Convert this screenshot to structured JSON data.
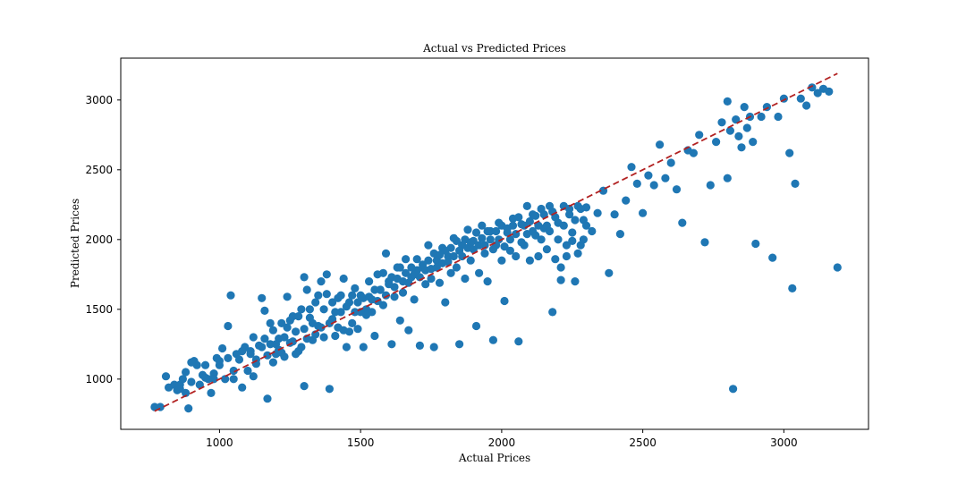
{
  "chart_data": {
    "type": "scatter",
    "title": "Actual vs Predicted Prices",
    "xlabel": "Actual Prices",
    "ylabel": "Predicted Prices",
    "xlim": [
      650,
      3300
    ],
    "ylim": [
      640,
      3300
    ],
    "x_ticks": [
      1000,
      1500,
      2000,
      2500,
      3000
    ],
    "y_ticks": [
      1000,
      1500,
      2000,
      2500,
      3000
    ],
    "grid": false,
    "point_color": "#1f77b4",
    "reference_line": {
      "style": "dashed",
      "color": "#b22222",
      "from": [
        770,
        770
      ],
      "to": [
        3190,
        3190
      ]
    },
    "points": [
      [
        770,
        800
      ],
      [
        790,
        800
      ],
      [
        810,
        1020
      ],
      [
        820,
        940
      ],
      [
        840,
        960
      ],
      [
        850,
        920
      ],
      [
        860,
        960
      ],
      [
        870,
        1000
      ],
      [
        880,
        1050
      ],
      [
        880,
        900
      ],
      [
        890,
        790
      ],
      [
        900,
        980
      ],
      [
        910,
        1130
      ],
      [
        920,
        1100
      ],
      [
        930,
        960
      ],
      [
        940,
        1030
      ],
      [
        950,
        1010
      ],
      [
        960,
        1000
      ],
      [
        970,
        900
      ],
      [
        980,
        1040
      ],
      [
        990,
        1150
      ],
      [
        1000,
        1100
      ],
      [
        1010,
        1220
      ],
      [
        1020,
        1000
      ],
      [
        1030,
        1150
      ],
      [
        1030,
        1380
      ],
      [
        1040,
        1600
      ],
      [
        1050,
        1060
      ],
      [
        1060,
        1180
      ],
      [
        1070,
        1140
      ],
      [
        1080,
        940
      ],
      [
        1090,
        1230
      ],
      [
        1100,
        1060
      ],
      [
        1110,
        1200
      ],
      [
        1120,
        1300
      ],
      [
        1130,
        1140
      ],
      [
        1140,
        1240
      ],
      [
        1150,
        1580
      ],
      [
        1160,
        1490
      ],
      [
        1170,
        860
      ],
      [
        1180,
        1250
      ],
      [
        1190,
        1350
      ],
      [
        1200,
        1180
      ],
      [
        1210,
        1290
      ],
      [
        1220,
        1400
      ],
      [
        1230,
        1300
      ],
      [
        1240,
        1590
      ],
      [
        1250,
        1260
      ],
      [
        1260,
        1450
      ],
      [
        1270,
        1340
      ],
      [
        1280,
        1200
      ],
      [
        1290,
        1500
      ],
      [
        1300,
        1730
      ],
      [
        1300,
        950
      ],
      [
        1310,
        1640
      ],
      [
        1320,
        1440
      ],
      [
        1330,
        1280
      ],
      [
        1340,
        1550
      ],
      [
        1350,
        1380
      ],
      [
        1360,
        1700
      ],
      [
        1370,
        1500
      ],
      [
        1380,
        1610
      ],
      [
        1390,
        930
      ],
      [
        1400,
        1430
      ],
      [
        1410,
        1310
      ],
      [
        1420,
        1580
      ],
      [
        1430,
        1480
      ],
      [
        1440,
        1720
      ],
      [
        1450,
        1230
      ],
      [
        1460,
        1550
      ],
      [
        1470,
        1400
      ],
      [
        1480,
        1650
      ],
      [
        1490,
        1360
      ],
      [
        1500,
        1600
      ],
      [
        1510,
        1230
      ],
      [
        1520,
        1500
      ],
      [
        1530,
        1700
      ],
      [
        1540,
        1570
      ],
      [
        1550,
        1310
      ],
      [
        1560,
        1750
      ],
      [
        1570,
        1640
      ],
      [
        1580,
        1530
      ],
      [
        1590,
        1900
      ],
      [
        1600,
        1700
      ],
      [
        1610,
        1250
      ],
      [
        1620,
        1660
      ],
      [
        1630,
        1800
      ],
      [
        1640,
        1420
      ],
      [
        1650,
        1700
      ],
      [
        1660,
        1860
      ],
      [
        1670,
        1350
      ],
      [
        1680,
        1730
      ],
      [
        1690,
        1570
      ],
      [
        1700,
        1780
      ],
      [
        1710,
        1240
      ],
      [
        1720,
        1800
      ],
      [
        1730,
        1680
      ],
      [
        1740,
        1960
      ],
      [
        1750,
        1720
      ],
      [
        1760,
        1230
      ],
      [
        1770,
        1850
      ],
      [
        1780,
        1690
      ],
      [
        1790,
        1940
      ],
      [
        1800,
        1550
      ],
      [
        1810,
        1880
      ],
      [
        1820,
        1760
      ],
      [
        1830,
        2010
      ],
      [
        1840,
        1800
      ],
      [
        1850,
        1250
      ],
      [
        1860,
        1960
      ],
      [
        1870,
        1720
      ],
      [
        1880,
        2070
      ],
      [
        1890,
        1850
      ],
      [
        1900,
        1990
      ],
      [
        1910,
        1380
      ],
      [
        1920,
        1760
      ],
      [
        1930,
        2100
      ],
      [
        1940,
        1900
      ],
      [
        1950,
        1700
      ],
      [
        1960,
        2060
      ],
      [
        1970,
        1280
      ],
      [
        1980,
        1960
      ],
      [
        1990,
        2120
      ],
      [
        2000,
        1850
      ],
      [
        2010,
        1560
      ],
      [
        2020,
        2050
      ],
      [
        2030,
        1920
      ],
      [
        2040,
        2150
      ],
      [
        2050,
        1880
      ],
      [
        2060,
        1270
      ],
      [
        2070,
        2110
      ],
      [
        2080,
        1960
      ],
      [
        2090,
        2240
      ],
      [
        2100,
        1850
      ],
      [
        2110,
        2180
      ],
      [
        2120,
        2030
      ],
      [
        2130,
        1880
      ],
      [
        2140,
        2220
      ],
      [
        2150,
        2080
      ],
      [
        2160,
        1930
      ],
      [
        2170,
        2240
      ],
      [
        2180,
        1480
      ],
      [
        2190,
        2160
      ],
      [
        2200,
        2000
      ],
      [
        2210,
        1710
      ],
      [
        2220,
        2240
      ],
      [
        2230,
        1880
      ],
      [
        2240,
        2180
      ],
      [
        2250,
        2050
      ],
      [
        2260,
        1700
      ],
      [
        2270,
        2240
      ],
      [
        2280,
        1960
      ],
      [
        2290,
        2140
      ],
      [
        2300,
        2230
      ],
      [
        2320,
        2060
      ],
      [
        2340,
        2190
      ],
      [
        2360,
        2350
      ],
      [
        2380,
        1760
      ],
      [
        2400,
        2180
      ],
      [
        2420,
        2040
      ],
      [
        2440,
        2280
      ],
      [
        2460,
        2520
      ],
      [
        2480,
        2400
      ],
      [
        2500,
        2190
      ],
      [
        2520,
        2460
      ],
      [
        2540,
        2390
      ],
      [
        2560,
        2680
      ],
      [
        2580,
        2440
      ],
      [
        2600,
        2550
      ],
      [
        2620,
        2360
      ],
      [
        2640,
        2120
      ],
      [
        2660,
        2640
      ],
      [
        2680,
        2620
      ],
      [
        2700,
        2750
      ],
      [
        2720,
        1980
      ],
      [
        2740,
        2390
      ],
      [
        2760,
        2700
      ],
      [
        2780,
        2840
      ],
      [
        2800,
        2990
      ],
      [
        2800,
        2440
      ],
      [
        2810,
        2780
      ],
      [
        2820,
        930
      ],
      [
        2830,
        2860
      ],
      [
        2840,
        2740
      ],
      [
        2850,
        2660
      ],
      [
        2860,
        2950
      ],
      [
        2870,
        2800
      ],
      [
        2880,
        2880
      ],
      [
        2890,
        2700
      ],
      [
        2900,
        1970
      ],
      [
        2920,
        2880
      ],
      [
        2940,
        2950
      ],
      [
        2960,
        1870
      ],
      [
        2980,
        2880
      ],
      [
        3000,
        3010
      ],
      [
        3020,
        2620
      ],
      [
        3030,
        1650
      ],
      [
        3040,
        2400
      ],
      [
        3060,
        3010
      ],
      [
        3080,
        2960
      ],
      [
        3100,
        3090
      ],
      [
        3120,
        3050
      ],
      [
        3140,
        3080
      ],
      [
        3160,
        3060
      ],
      [
        3190,
        1800
      ],
      [
        860,
        930
      ],
      [
        900,
        1120
      ],
      [
        950,
        1100
      ],
      [
        980,
        1000
      ],
      [
        1000,
        1130
      ],
      [
        1050,
        1000
      ],
      [
        1080,
        1200
      ],
      [
        1110,
        1180
      ],
      [
        1120,
        1020
      ],
      [
        1130,
        1110
      ],
      [
        1150,
        1230
      ],
      [
        1160,
        1290
      ],
      [
        1170,
        1170
      ],
      [
        1180,
        1400
      ],
      [
        1190,
        1120
      ],
      [
        1200,
        1250
      ],
      [
        1210,
        1210
      ],
      [
        1220,
        1190
      ],
      [
        1230,
        1160
      ],
      [
        1240,
        1370
      ],
      [
        1250,
        1420
      ],
      [
        1260,
        1270
      ],
      [
        1270,
        1180
      ],
      [
        1280,
        1450
      ],
      [
        1290,
        1230
      ],
      [
        1300,
        1360
      ],
      [
        1310,
        1290
      ],
      [
        1320,
        1500
      ],
      [
        1330,
        1400
      ],
      [
        1340,
        1320
      ],
      [
        1350,
        1600
      ],
      [
        1360,
        1370
      ],
      [
        1370,
        1300
      ],
      [
        1380,
        1750
      ],
      [
        1390,
        1400
      ],
      [
        1400,
        1550
      ],
      [
        1410,
        1480
      ],
      [
        1420,
        1370
      ],
      [
        1430,
        1600
      ],
      [
        1440,
        1350
      ],
      [
        1450,
        1520
      ],
      [
        1460,
        1340
      ],
      [
        1470,
        1600
      ],
      [
        1480,
        1480
      ],
      [
        1490,
        1550
      ],
      [
        1500,
        1480
      ],
      [
        1510,
        1580
      ],
      [
        1520,
        1460
      ],
      [
        1530,
        1590
      ],
      [
        1540,
        1480
      ],
      [
        1550,
        1640
      ],
      [
        1560,
        1560
      ],
      [
        1570,
        1640
      ],
      [
        1580,
        1760
      ],
      [
        1590,
        1600
      ],
      [
        1600,
        1680
      ],
      [
        1610,
        1730
      ],
      [
        1620,
        1590
      ],
      [
        1630,
        1720
      ],
      [
        1640,
        1800
      ],
      [
        1650,
        1620
      ],
      [
        1660,
        1760
      ],
      [
        1670,
        1690
      ],
      [
        1680,
        1800
      ],
      [
        1690,
        1750
      ],
      [
        1700,
        1860
      ],
      [
        1710,
        1730
      ],
      [
        1720,
        1820
      ],
      [
        1730,
        1780
      ],
      [
        1740,
        1850
      ],
      [
        1750,
        1790
      ],
      [
        1760,
        1900
      ],
      [
        1770,
        1800
      ],
      [
        1780,
        1890
      ],
      [
        1790,
        1830
      ],
      [
        1800,
        1920
      ],
      [
        1810,
        1840
      ],
      [
        1820,
        1940
      ],
      [
        1830,
        1880
      ],
      [
        1840,
        1990
      ],
      [
        1850,
        1920
      ],
      [
        1860,
        1880
      ],
      [
        1870,
        2000
      ],
      [
        1880,
        1940
      ],
      [
        1890,
        1980
      ],
      [
        1900,
        1930
      ],
      [
        1910,
        2050
      ],
      [
        1920,
        1960
      ],
      [
        1930,
        2010
      ],
      [
        1940,
        1960
      ],
      [
        1950,
        2060
      ],
      [
        1960,
        2000
      ],
      [
        1970,
        1930
      ],
      [
        1980,
        2060
      ],
      [
        1990,
        2000
      ],
      [
        2000,
        2100
      ],
      [
        2010,
        1950
      ],
      [
        2020,
        2080
      ],
      [
        2030,
        2000
      ],
      [
        2040,
        2100
      ],
      [
        2050,
        2040
      ],
      [
        2060,
        2160
      ],
      [
        2070,
        1980
      ],
      [
        2080,
        2100
      ],
      [
        2090,
        2040
      ],
      [
        2100,
        2130
      ],
      [
        2110,
        2060
      ],
      [
        2120,
        2170
      ],
      [
        2130,
        2100
      ],
      [
        2140,
        2000
      ],
      [
        2150,
        2180
      ],
      [
        2160,
        2100
      ],
      [
        2170,
        2060
      ],
      [
        2180,
        2200
      ],
      [
        2190,
        1860
      ],
      [
        2200,
        2120
      ],
      [
        2210,
        1800
      ],
      [
        2220,
        2100
      ],
      [
        2230,
        1960
      ],
      [
        2240,
        2220
      ],
      [
        2250,
        1990
      ],
      [
        2260,
        2140
      ],
      [
        2270,
        1900
      ],
      [
        2280,
        2220
      ],
      [
        2290,
        2000
      ],
      [
        2300,
        2100
      ]
    ]
  }
}
